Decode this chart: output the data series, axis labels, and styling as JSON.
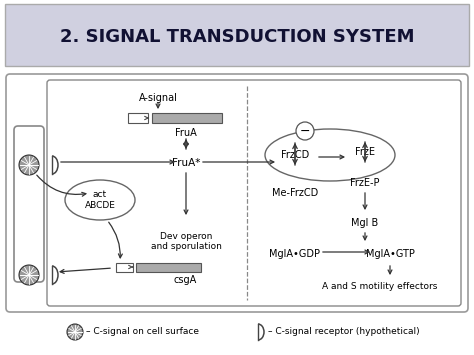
{
  "title": "2. SIGNAL TRANSDUCTION SYSTEM",
  "title_bg": "#d0d0e0",
  "title_fontsize": 13,
  "legend_csignal": "C-signal on cell surface",
  "legend_creceptor": "C-signal receptor (hypothetical)"
}
